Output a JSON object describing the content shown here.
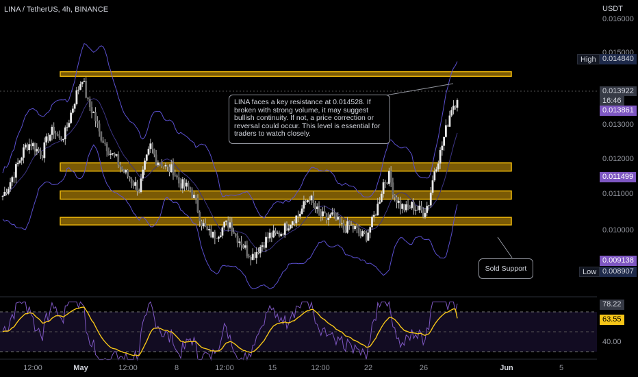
{
  "header": {
    "symbol": "LINA / TetherUS, 4h, BINANCE"
  },
  "price_axis": {
    "currency": "USDT",
    "ticks": [
      "0.016000",
      "0.015000",
      "0.013000",
      "0.012000",
      "0.011000",
      "0.010000"
    ],
    "tags": {
      "high_label": "High",
      "high_value": "0.014840",
      "last_price": "0.013922",
      "countdown": "16:46",
      "ma_value": "0.013861",
      "band_value": "0.011499",
      "lower_band_value": "0.009138",
      "low_label": "Low",
      "low_value": "0.008907"
    }
  },
  "rsi_axis": {
    "rsi_value": "78.22",
    "rsi_ma_value": "63.55",
    "tick_40": "40.00"
  },
  "time_axis": {
    "ticks": [
      "12:00",
      "May",
      "12:00",
      "8",
      "12:00",
      "15",
      "12:00",
      "22",
      "26",
      "Jun",
      "5"
    ]
  },
  "annotations": {
    "resistance_note": "LINA faces a key resistance at 0.014528. If broken with strong volume, it may suggest bullish continuity. If not, a price correction or reversal could occur. This level is essential for traders to watch closely.",
    "support_note": "Sold Support"
  },
  "colors": {
    "background": "#000000",
    "zone_fill": "#7a5a05",
    "zone_border": "#f0b90b",
    "candle": "#d8d8d8",
    "bollinger": "#5a4fcf",
    "rsi_line": "#7e57c2",
    "rsi_ma": "#f5c518",
    "high_tag": "#1e2a4a",
    "ma_tag": "#7e57c2"
  },
  "chart_data": {
    "type": "candlestick",
    "title": "LINA / TetherUS, 4h, BINANCE",
    "y_unit": "USDT",
    "ylim": [
      0.00865,
      0.01635
    ],
    "resistance_zones": [
      {
        "low": 0.01462,
        "high": 0.01476
      },
      {
        "low": 0.01175,
        "high": 0.012
      },
      {
        "low": 0.0109,
        "high": 0.01115
      },
      {
        "low": 0.01012,
        "high": 0.01035
      }
    ],
    "close_path": [
      0.011,
      0.0113,
      0.0117,
      0.0121,
      0.0125,
      0.0126,
      0.0124,
      0.0123,
      0.0128,
      0.013,
      0.0127,
      0.0129,
      0.0135,
      0.0141,
      0.0146,
      0.0138,
      0.0135,
      0.0129,
      0.0126,
      0.0123,
      0.0121,
      0.0118,
      0.0116,
      0.0114,
      0.0112,
      0.0119,
      0.0125,
      0.0121,
      0.012,
      0.0118,
      0.0118,
      0.0114,
      0.0113,
      0.0112,
      0.0108,
      0.0102,
      0.0099,
      0.0098,
      0.0099,
      0.0101,
      0.0102,
      0.0098,
      0.0096,
      0.0093,
      0.0092,
      0.0094,
      0.0096,
      0.0098,
      0.0098,
      0.0099,
      0.0101,
      0.0103,
      0.0104,
      0.0107,
      0.011,
      0.0106,
      0.0104,
      0.0103,
      0.0104,
      0.0102,
      0.01,
      0.0101,
      0.01,
      0.0098,
      0.0098,
      0.0102,
      0.0107,
      0.0114,
      0.0116,
      0.011,
      0.0107,
      0.0106,
      0.0107,
      0.0106,
      0.0105,
      0.0108,
      0.0118,
      0.0123,
      0.013,
      0.0137,
      0.0139
    ],
    "rsi": {
      "last": 78.22,
      "ma_last": 63.55,
      "levels": [
        70,
        50,
        30
      ]
    },
    "price_tags": {
      "high": 0.01484,
      "last": 0.013922,
      "low": 0.008907
    }
  }
}
